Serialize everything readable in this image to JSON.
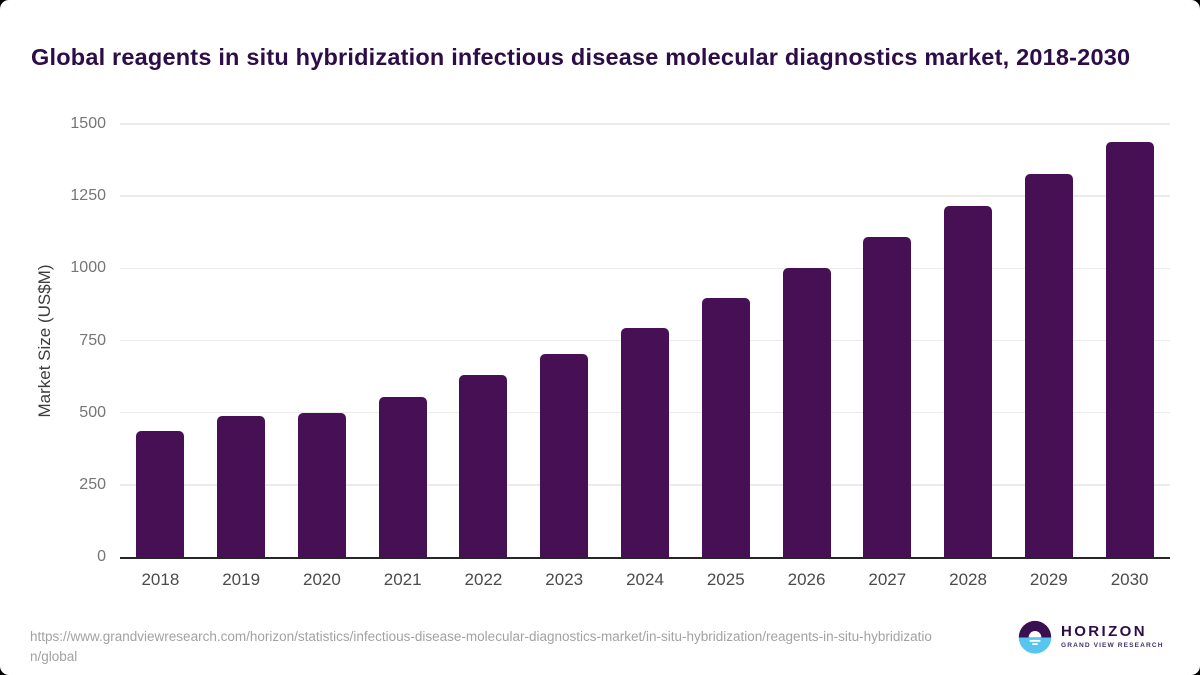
{
  "header": {
    "title": "Global reagents in situ hybridization infectious disease molecular diagnostics market, 2018-2030"
  },
  "chart_data": {
    "type": "bar",
    "title": "Global reagents in situ hybridization infectious disease molecular diagnostics market, 2018-2030",
    "categories": [
      "2018",
      "2019",
      "2020",
      "2021",
      "2022",
      "2023",
      "2024",
      "2025",
      "2026",
      "2027",
      "2028",
      "2029",
      "2030"
    ],
    "values": [
      435,
      487,
      499,
      553,
      632,
      703,
      792,
      896,
      1002,
      1108,
      1217,
      1326,
      1436
    ],
    "xlabel": "",
    "ylabel": "Market Size (US$M)",
    "ylim": [
      0,
      1500
    ],
    "yticks": [
      0,
      250,
      500,
      750,
      1000,
      1250,
      1500
    ],
    "grid": true,
    "legend_position": "none",
    "bar_color": "#471055"
  },
  "footer": {
    "source_url": "https://www.grandviewresearch.com/horizon/statistics/infectious-disease-molecular-diagnostics-market/in-situ-hybridization/reagents-in-situ-hybridization/global",
    "logo": {
      "brand": "HORIZON",
      "sub_brand": "GRAND VIEW RESEARCH",
      "icon": "horizon-sun-circle-icon"
    }
  },
  "colors": {
    "title_text": "#2d0d48",
    "bar": "#471055",
    "gridline": "#ebebee",
    "axis_line": "#262626",
    "ytick_text": "#757575",
    "xtick_text": "#4b4b4b",
    "footer_text": "#a2a2a2",
    "logo_purple": "#3a1150",
    "logo_blue": "#56c5f0"
  }
}
